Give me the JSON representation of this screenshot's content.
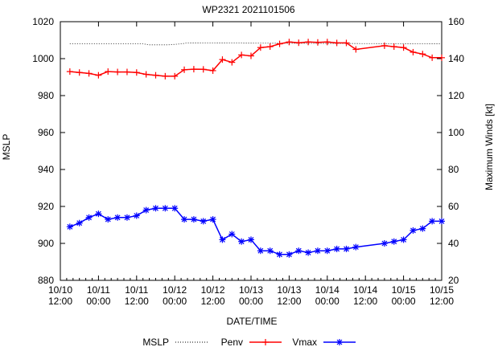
{
  "chart_data": {
    "type": "line",
    "title": "WP2321 2021101506",
    "xlabel": "DATE/TIME",
    "ylabel_left": "MSLP",
    "ylabel_right": "Maximum Winds [kt]",
    "xlim": [
      0,
      60
    ],
    "ylim_left": [
      880,
      1020
    ],
    "ylim_right": [
      20,
      160
    ],
    "left_ticks": [
      880,
      900,
      920,
      940,
      960,
      980,
      1000,
      1020
    ],
    "right_ticks": [
      20,
      40,
      60,
      80,
      100,
      120,
      140,
      160
    ],
    "x_ticks": [
      {
        "x": 0,
        "line1": "10/10",
        "line2": "12:00"
      },
      {
        "x": 6,
        "line1": "10/11",
        "line2": "00:00"
      },
      {
        "x": 12,
        "line1": "10/11",
        "line2": "12:00"
      },
      {
        "x": 18,
        "line1": "10/12",
        "line2": "00:00"
      },
      {
        "x": 24,
        "line1": "10/12",
        "line2": "12:00"
      },
      {
        "x": 30,
        "line1": "10/13",
        "line2": "00:00"
      },
      {
        "x": 36,
        "line1": "10/13",
        "line2": "12:00"
      },
      {
        "x": 42,
        "line1": "10/14",
        "line2": "00:00"
      },
      {
        "x": 48,
        "line1": "10/14",
        "line2": "12:00"
      },
      {
        "x": 54,
        "line1": "10/15",
        "line2": "00:00"
      },
      {
        "x": 60,
        "line1": "10/15",
        "line2": "12:00"
      }
    ],
    "legend": [
      {
        "label": "MSLP"
      },
      {
        "label": "Penv"
      },
      {
        "label": "Vmax"
      }
    ],
    "colors": {
      "penv": "#ff0000",
      "vmax": "#0000ff",
      "mslp": "#000000",
      "axis": "#000000"
    },
    "series": [
      {
        "name": "MSLP",
        "axis": "left",
        "style": "dotted",
        "x": [
          1.5,
          13,
          14,
          17,
          19,
          20,
          60
        ],
        "y": [
          1008,
          1008,
          1007.5,
          1007.5,
          1008,
          1008.5,
          1008
        ]
      },
      {
        "name": "Penv",
        "axis": "left",
        "style": "line-plus",
        "x": [
          1.5,
          3,
          4.5,
          6,
          7.5,
          9,
          10.5,
          12,
          13.5,
          15,
          16.5,
          18,
          19.5,
          21,
          22.5,
          24,
          25.5,
          27,
          28.5,
          30,
          31.5,
          33,
          34.5,
          36,
          37.5,
          39,
          40.5,
          42,
          43.5,
          45,
          46.5,
          51,
          52.5,
          54,
          55.5,
          57,
          58.5,
          60
        ],
        "y": [
          993,
          992.5,
          992,
          991,
          993,
          992.8,
          992.8,
          992.5,
          991.5,
          991,
          990.5,
          990.5,
          994,
          994.3,
          994.2,
          993.5,
          999.5,
          998,
          1002,
          1001.5,
          1006,
          1006.5,
          1008,
          1009,
          1008.6,
          1009,
          1008.8,
          1009,
          1008.5,
          1008.5,
          1005,
          1007,
          1006.5,
          1006,
          1003.5,
          1002.5,
          1000.5,
          1000.5
        ]
      },
      {
        "name": "Vmax",
        "axis": "right",
        "style": "line-star",
        "x": [
          1.5,
          3,
          4.5,
          6,
          7.5,
          9,
          10.5,
          12,
          13.5,
          15,
          16.5,
          18,
          19.5,
          21,
          22.5,
          24,
          25.5,
          27,
          28.5,
          30,
          31.5,
          33,
          34.5,
          36,
          37.5,
          39,
          40.5,
          42,
          43.5,
          45,
          46.5,
          51,
          52.5,
          54,
          55.5,
          57,
          58.5,
          60
        ],
        "y": [
          49,
          51,
          54,
          56,
          53,
          54,
          54,
          55,
          58,
          59,
          59,
          59,
          53,
          53,
          52,
          53,
          42,
          45,
          41,
          42,
          36,
          36,
          34,
          34,
          36,
          35,
          36,
          36,
          37,
          37,
          38,
          40,
          41,
          42,
          47,
          48,
          52,
          52
        ]
      }
    ]
  }
}
